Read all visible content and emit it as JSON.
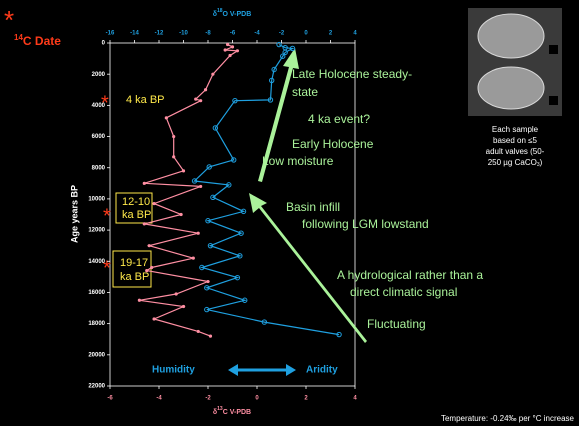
{
  "chart_data": {
    "type": "line",
    "title_sup": "14",
    "title": "C Date",
    "ylabel": "Age years BP",
    "xlabel_parts": [
      "δ",
      "13",
      "C V-PDB"
    ],
    "x2label_parts": [
      "δ",
      "18",
      "O V-PDB"
    ],
    "xlim": [
      -6,
      4
    ],
    "xticks": [
      -6,
      -4,
      -2,
      0,
      2,
      4
    ],
    "x2lim": [
      -16,
      4
    ],
    "x2ticks": [
      -16,
      -14,
      -12,
      -10,
      -8,
      -6,
      -4,
      -2,
      0,
      2,
      4
    ],
    "ylim": [
      0,
      22000
    ],
    "yticks": [
      0,
      2000,
      4000,
      6000,
      8000,
      10000,
      12000,
      14000,
      16000,
      18000,
      20000,
      22000
    ],
    "y_inverted": true,
    "series": [
      {
        "color": "#ff8fa3",
        "axis": "x",
        "x": [
          -1.2,
          -1.0,
          -1.3,
          -0.8,
          -1.1,
          -1.8,
          -2.1,
          -2.5,
          -2.3,
          -3.7,
          -3.4,
          -3.4,
          -3.0,
          -4.6,
          -2.3,
          -4.2,
          -3.1,
          -4.6,
          -2.4,
          -4.4,
          -2.6,
          -4.3,
          -4.5,
          -2.0,
          -3.3,
          -4.8,
          -3.0,
          -4.2,
          -2.4,
          -1.9
        ],
        "values": [
          100,
          250,
          450,
          500,
          800,
          2000,
          3000,
          3600,
          3700,
          4800,
          6000,
          7300,
          8200,
          9000,
          9200,
          10300,
          11000,
          11600,
          12200,
          13000,
          13800,
          14400,
          14600,
          15300,
          16100,
          16500,
          16900,
          17700,
          18500,
          18800
        ]
      },
      {
        "color": "#1fa0e0",
        "axis": "x2",
        "x": [
          -2.2,
          -1.7,
          -1.1,
          -1.7,
          -1.9,
          -2.6,
          -2.8,
          -2.9,
          -5.8,
          -7.4,
          -5.9,
          -7.9,
          -9.1,
          -6.3,
          -7.6,
          -5.1,
          -8.0,
          -5.3,
          -7.8,
          -5.4,
          -8.5,
          -5.6,
          -8.1,
          -5.0,
          -8.1,
          -3.4,
          2.7
        ],
        "values": [
          100,
          300,
          350,
          600,
          850,
          1700,
          2400,
          3650,
          3700,
          5450,
          7500,
          7950,
          8850,
          9100,
          9900,
          10800,
          11400,
          12200,
          13000,
          13650,
          14400,
          15050,
          15700,
          16500,
          17100,
          17900,
          18700
        ]
      }
    ],
    "annotations": [
      "Late Holocene steady-",
      "state",
      "4 ka event?",
      "Early Holocene",
      "Low moisture",
      "Basin infill",
      "following LGM lowstand",
      "A hydrological rather than a",
      "direct climatic signal",
      "Fluctuating"
    ],
    "date_labels": [
      "4 ka BP",
      "12-10",
      "ka BP",
      "19-17",
      "ka BP"
    ],
    "humidity": "Humidity",
    "aridity": "Aridity",
    "caption": [
      "Each sample",
      "based on ≤5",
      "adult valves (50-",
      "250 µg CaCO",
      "3",
      ")"
    ],
    "footnote": "Temperature: -0.24‰ per °C increase"
  }
}
